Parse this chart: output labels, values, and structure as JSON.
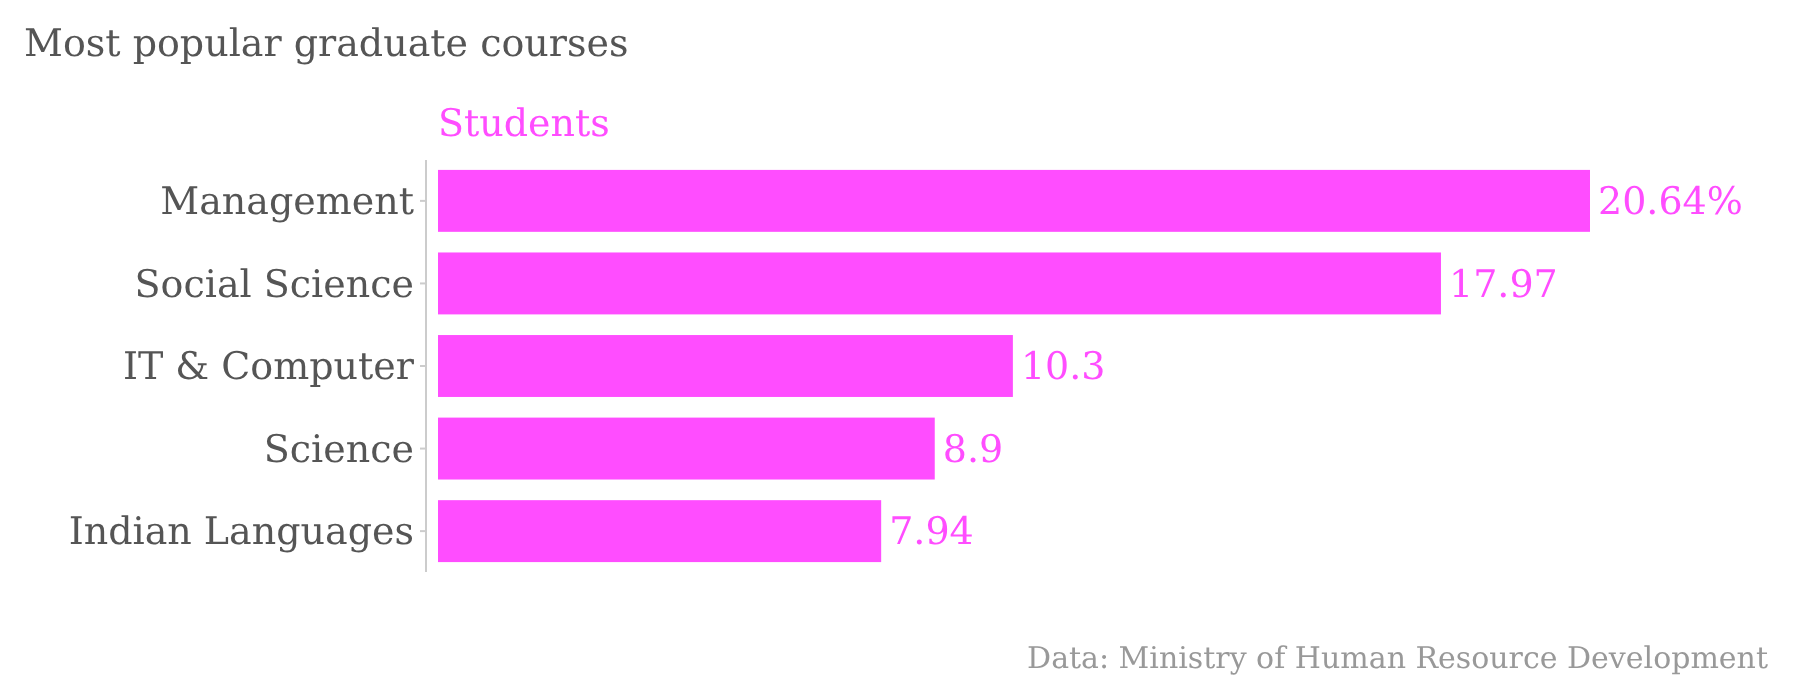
{
  "chart_data": {
    "type": "bar",
    "orientation": "horizontal",
    "title": "Most popular graduate courses",
    "categories": [
      "Management",
      "Social Science",
      "IT & Computer",
      "Science",
      "Indian Languages"
    ],
    "series": [
      {
        "name": "Students",
        "color": "#ff4dff",
        "values": [
          20.64,
          17.97,
          10.3,
          8.9,
          7.94
        ],
        "value_labels": [
          "20.64%",
          "17.97",
          "10.3",
          "8.9",
          "7.94"
        ]
      }
    ],
    "legend": "top left",
    "annotations": [
      "Data: Ministry of Human Resource Development"
    ]
  }
}
